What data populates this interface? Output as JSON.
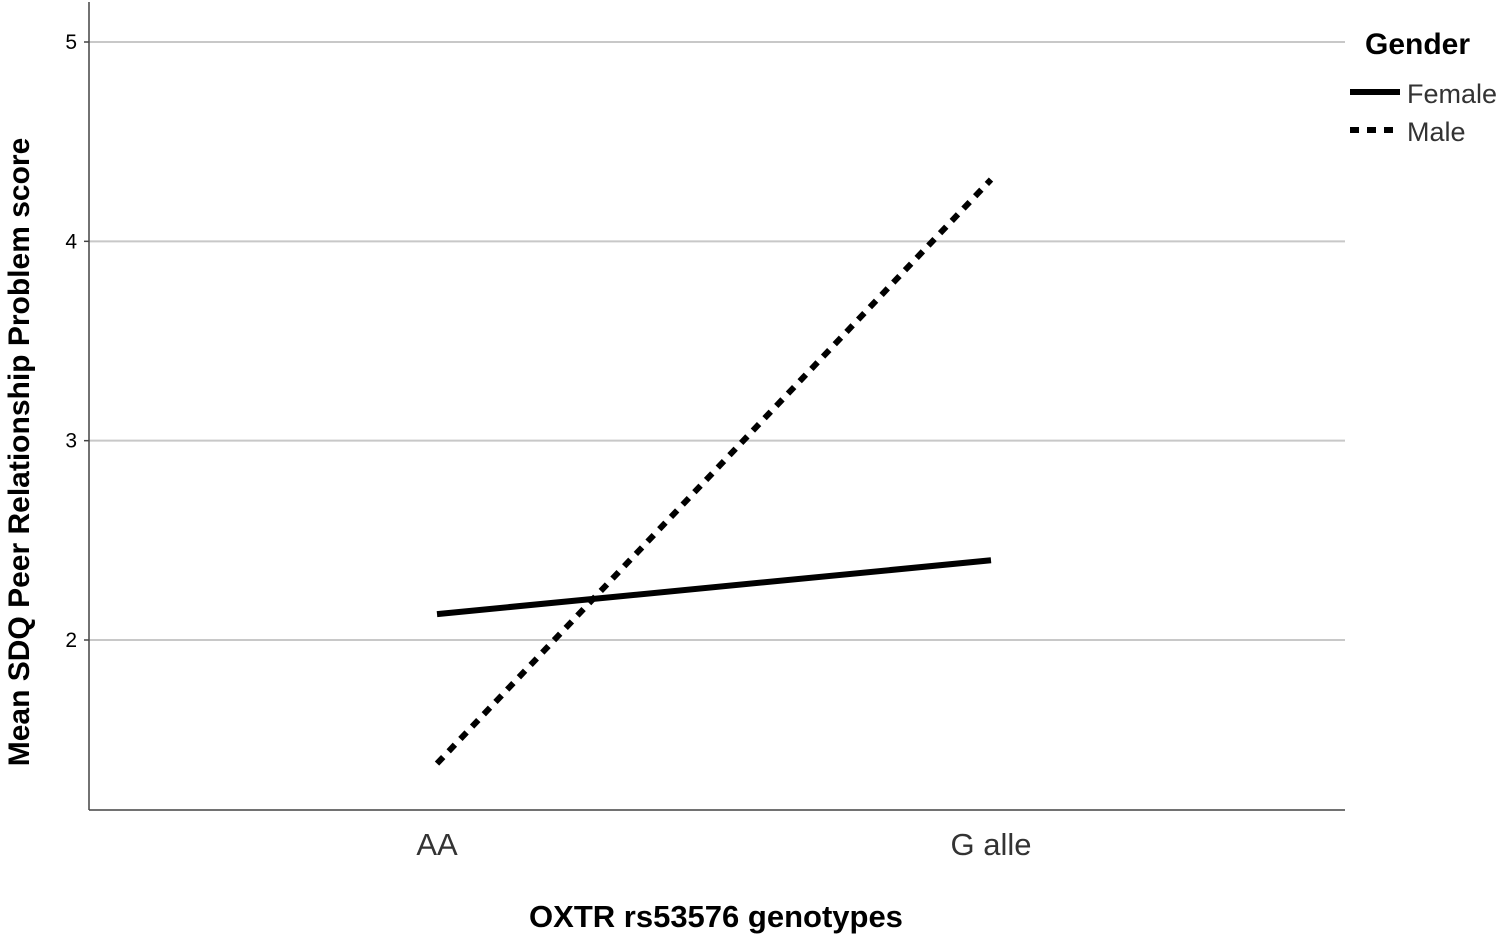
{
  "chart_data": {
    "type": "line",
    "xlabel": "OXTR rs53576 genotypes",
    "ylabel": "Mean SDQ Peer Relationship Problem score",
    "categories": [
      "AA",
      "G alle"
    ],
    "ylim": [
      1.15,
      5.2
    ],
    "yticks": [
      2,
      3,
      4,
      5
    ],
    "grid": true,
    "legend": {
      "title": "Gender",
      "placement": "top-right"
    },
    "series": [
      {
        "name": "Female",
        "style": "solid",
        "color": "#000000",
        "values": [
          2.13,
          2.4
        ]
      },
      {
        "name": "Male",
        "style": "dotted",
        "color": "#000000",
        "values": [
          1.38,
          4.31
        ]
      }
    ]
  }
}
